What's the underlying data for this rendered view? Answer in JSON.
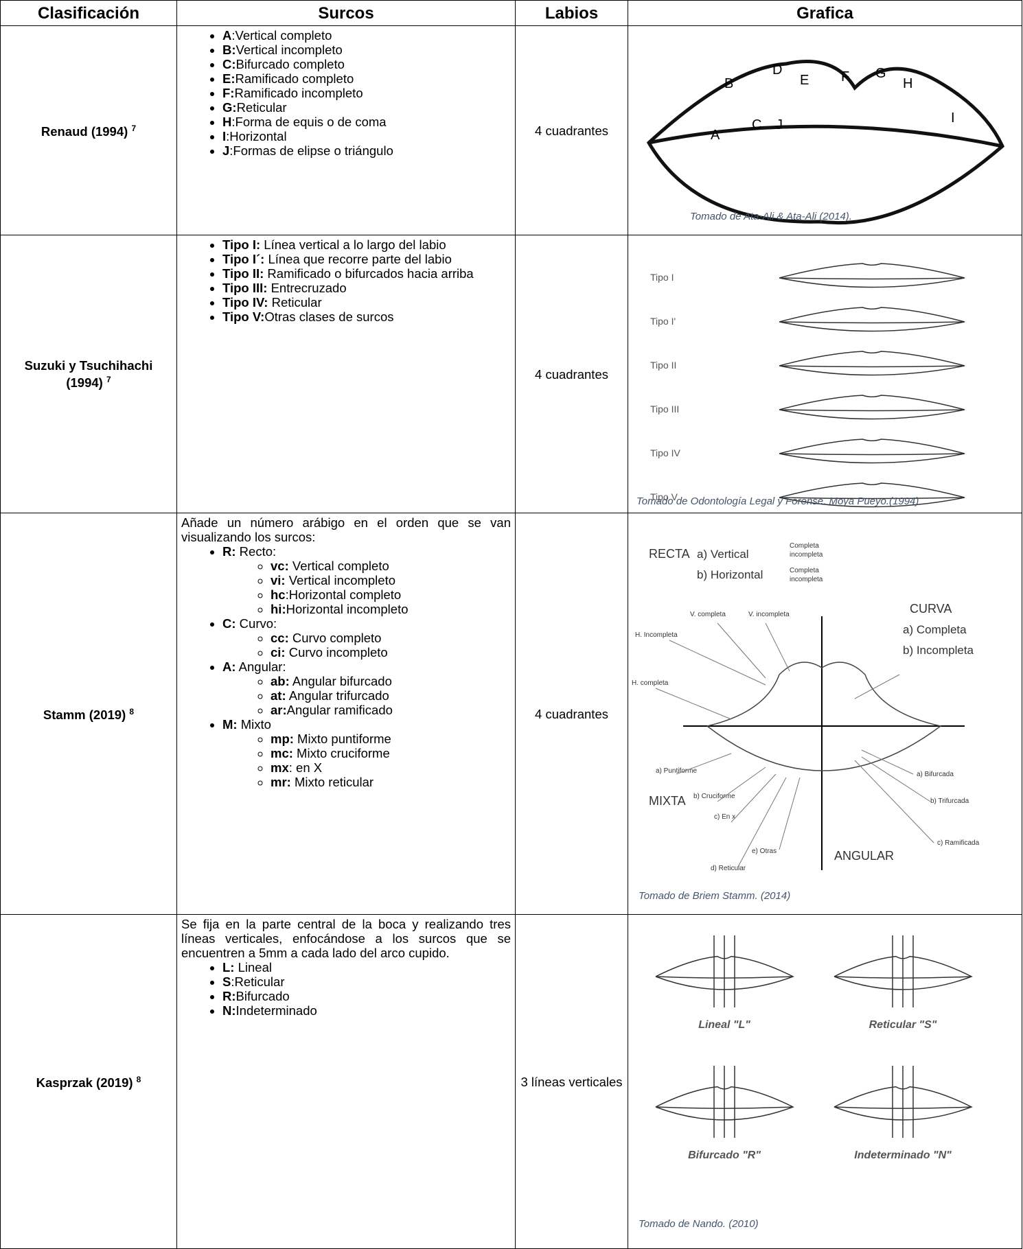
{
  "table": {
    "header": [
      "Clasificación",
      "Surcos",
      "Labios",
      "Grafica"
    ],
    "rows": [
      {
        "classification": {
          "text": "Renaud (1994)",
          "sup": "7"
        },
        "surcos": {
          "items": [
            {
              "key": "A",
              "text": ":Vertical completo"
            },
            {
              "key": "B:",
              "text": "Vertical incompleto"
            },
            {
              "key": "C:",
              "text": "Bifurcado completo"
            },
            {
              "key": "E:",
              "text": "Ramificado completo"
            },
            {
              "key": "F:",
              "text": "Ramificado incompleto"
            },
            {
              "key": "G:",
              "text": "Reticular"
            },
            {
              "key": "H",
              "text": ":Forma de equis o de coma"
            },
            {
              "key": "I",
              "text": ":Horizontal"
            },
            {
              "key": "J",
              "text": ":Formas de elipse o triángulo"
            }
          ]
        },
        "labios": "4 cuadrantes",
        "graphic": {
          "labels": [
            "A",
            "B",
            "C",
            "D",
            "E",
            "F",
            "G",
            "H",
            "I",
            "J"
          ],
          "caption": "Tomado  de Ata-Ali & Ata-Ali (2014)."
        }
      },
      {
        "classification": {
          "text": "Suzuki y Tsuchihachi (1994)",
          "sup": "7"
        },
        "surcos": {
          "items": [
            {
              "key": "Tipo I:",
              "text": " Línea vertical a lo largo del labio"
            },
            {
              "key": "Tipo I´:",
              "text": " Línea que recorre parte del labio"
            },
            {
              "key": "Tipo II:",
              "text": " Ramificado o bifurcados hacia arriba"
            },
            {
              "key": "Tipo III:",
              "text": " Entrecruzado"
            },
            {
              "key": "Tipo IV:",
              "text": " Reticular"
            },
            {
              "key": "Tipo V:",
              "text": "Otras clases de surcos"
            }
          ]
        },
        "labios": "4 cuadrantes",
        "graphic": {
          "labels": [
            "Tipo I",
            "Tipo I'",
            "Tipo II",
            "Tipo III",
            "Tipo IV",
            "Tipo V"
          ],
          "caption": "Tomado de Odontología Legal y Forense. Moya Pueyo.(1994)"
        }
      },
      {
        "classification": {
          "text": "Stamm (2019)",
          "sup": "8"
        },
        "surcos": {
          "intro": "Añade un número arábigo en el orden que se van visualizando los surcos:",
          "items": [
            {
              "key": "R:",
              "text": " Recto:",
              "sub": [
                {
                  "key": "vc:",
                  "text": " Vertical completo"
                },
                {
                  "key": "vi:",
                  "text": " Vertical incompleto"
                },
                {
                  "key": "hc",
                  "text": ":Horizontal completo"
                },
                {
                  "key": "hi:",
                  "text": "Horizontal incompleto"
                }
              ]
            },
            {
              "key": "C:",
              "text": " Curvo:",
              "sub": [
                {
                  "key": "cc:",
                  "text": " Curvo completo"
                },
                {
                  "key": "ci:",
                  "text": " Curvo incompleto"
                }
              ]
            },
            {
              "key": "A:",
              "text": " Angular:",
              "sub": [
                {
                  "key": "ab:",
                  "text": " Angular bifurcado"
                },
                {
                  "key": "at:",
                  "text": " Angular trifurcado"
                },
                {
                  "key": "ar:",
                  "text": "Angular ramificado"
                }
              ]
            },
            {
              "key": "M:",
              "text": " Mixto",
              "sub": [
                {
                  "key": "mp:",
                  "text": " Mixto puntiforme"
                },
                {
                  "key": "mc:",
                  "text": " Mixto cruciforme"
                },
                {
                  "key": "mx",
                  "text": ": en X"
                },
                {
                  "key": "mr:",
                  "text": " Mixto reticular"
                }
              ]
            }
          ]
        },
        "labios": "4 cuadrantes",
        "graphic": {
          "labels": [
            "RECTA",
            "a) Vertical",
            "b) Horizontal",
            "Completa",
            "incompleta",
            "Completa",
            "incompleta",
            "CURVA",
            "a) Completa",
            "b) Incompleta",
            "V. completa",
            "V. incompleta",
            "H. Incompleta",
            "H. completa",
            "a) Puntiforme",
            "b) Cruciforme",
            "c) En x",
            "d) Reticular",
            "e) Otras",
            "MIXTA",
            "ANGULAR",
            "a) Bifurcada",
            "b) Trifurcada",
            "c) Ramificada"
          ],
          "caption": "Tomado de Briem Stamm. (2014)"
        }
      },
      {
        "classification": {
          "text": "Kasprzak (2019)",
          "sup": "8"
        },
        "surcos": {
          "intro": "Se fija en la parte central de la boca y realizando tres líneas verticales, enfocándose a los surcos que se encuentren a 5mm a cada lado del arco cupido.",
          "items": [
            {
              "key": "L:",
              "text": " Lineal"
            },
            {
              "key": "S",
              "text": ":Reticular"
            },
            {
              "key": "R:",
              "text": "Bifurcado"
            },
            {
              "key": "N:",
              "text": "Indeterminado"
            }
          ]
        },
        "labios": "3 líneas verticales",
        "graphic": {
          "labels": [
            "Lineal \"L\"",
            "Reticular \"S\"",
            "Bifurcado \"R\"",
            "Indeterminado \"N\""
          ],
          "caption": "Tomado de Nando. (2010)"
        }
      }
    ]
  }
}
